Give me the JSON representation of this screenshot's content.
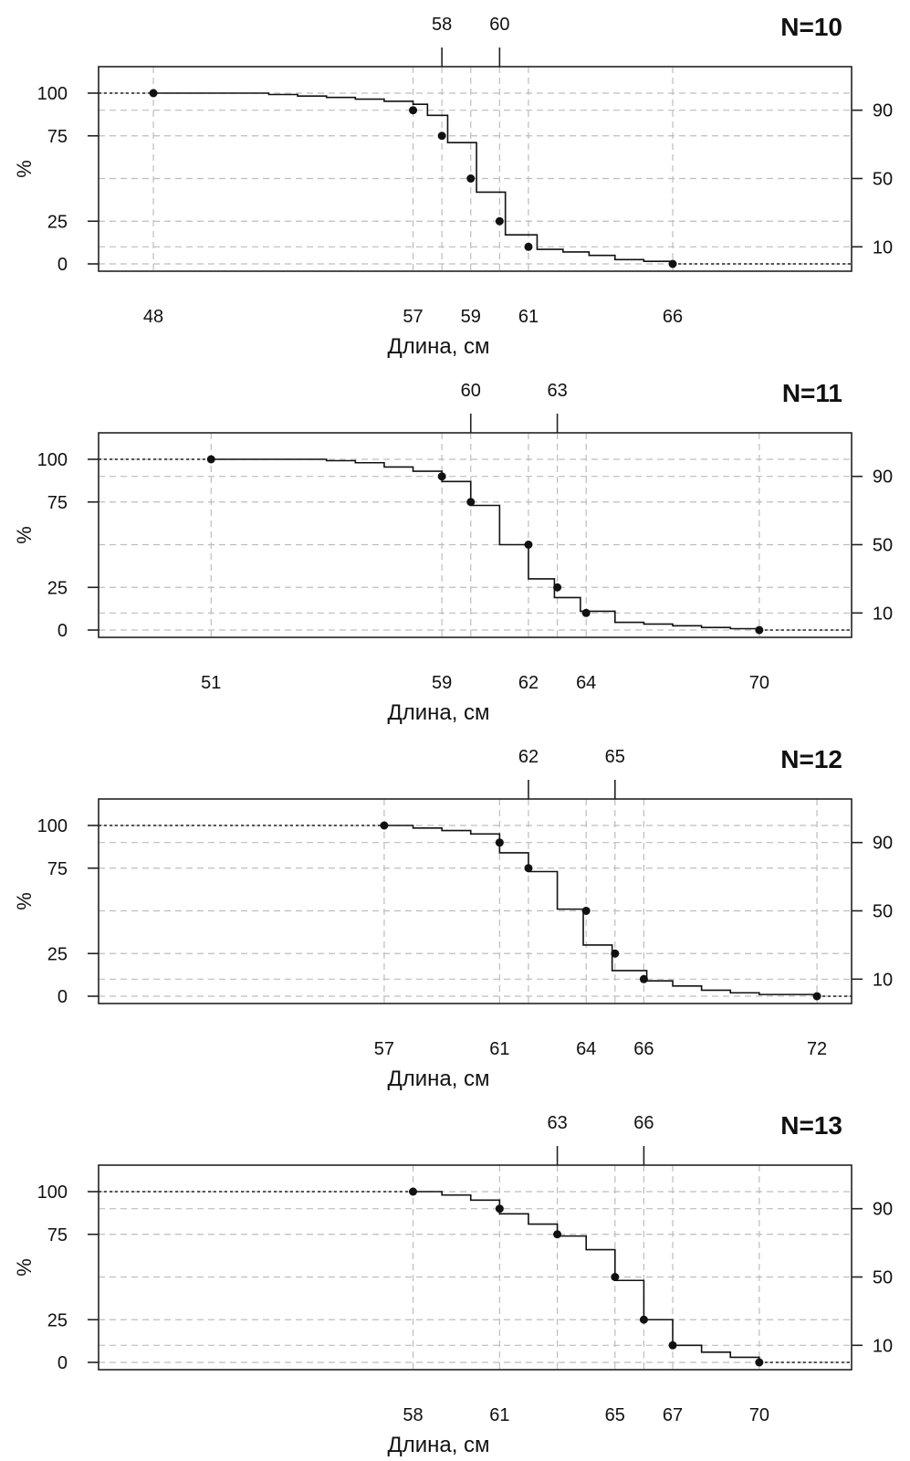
{
  "chart_data": [
    {
      "type": "line",
      "step": "survival",
      "title": "N=10",
      "xlabel": "Длина, см",
      "ylabel": "%",
      "xlim": [
        46.1,
        72.2
      ],
      "ylim": [
        0,
        100
      ],
      "yticks_left": [
        0,
        25,
        75,
        100
      ],
      "yticks_right": [
        10,
        50,
        90
      ],
      "xticks_bottom": [
        48,
        57,
        59,
        61,
        66
      ],
      "xticks_top": [
        58,
        60
      ],
      "xgrid": [
        48,
        57,
        58,
        59,
        60,
        61,
        66
      ],
      "grid": true,
      "points": [
        [
          48,
          100
        ],
        [
          57,
          90
        ],
        [
          58,
          75
        ],
        [
          59,
          50
        ],
        [
          60,
          25
        ],
        [
          61,
          10
        ],
        [
          66,
          0
        ]
      ],
      "steps": [
        [
          52,
          99.2
        ],
        [
          53,
          98.3
        ],
        [
          54,
          97.5
        ],
        [
          55,
          96.5
        ],
        [
          56,
          95.2
        ],
        [
          57,
          93.5
        ],
        [
          57.5,
          87
        ],
        [
          58.2,
          71
        ],
        [
          59.2,
          42
        ],
        [
          60.2,
          17
        ],
        [
          61.3,
          8.5
        ],
        [
          62.2,
          7
        ],
        [
          63.1,
          5
        ],
        [
          64,
          2.5
        ],
        [
          65,
          1.5
        ]
      ],
      "tail_end": 72.2
    },
    {
      "type": "line",
      "step": "survival",
      "title": "N=11",
      "xlabel": "Длина, см",
      "ylabel": "%",
      "xlim": [
        47.1,
        73.2
      ],
      "ylim": [
        0,
        100
      ],
      "yticks_left": [
        0,
        25,
        75,
        100
      ],
      "yticks_right": [
        10,
        50,
        90
      ],
      "xticks_bottom": [
        51,
        59,
        62,
        64,
        70
      ],
      "xticks_top": [
        60,
        63
      ],
      "xgrid": [
        51,
        59,
        60,
        62,
        63,
        64,
        70
      ],
      "grid": true,
      "points": [
        [
          51,
          100
        ],
        [
          59,
          90
        ],
        [
          60,
          75
        ],
        [
          62,
          50
        ],
        [
          63,
          25
        ],
        [
          64,
          10
        ],
        [
          70,
          0
        ]
      ],
      "steps": [
        [
          55,
          99.2
        ],
        [
          56,
          98
        ],
        [
          57,
          95.5
        ],
        [
          58,
          93
        ],
        [
          59,
          87
        ],
        [
          60,
          73
        ],
        [
          61,
          50
        ],
        [
          62,
          30
        ],
        [
          62.9,
          19
        ],
        [
          63.8,
          11
        ],
        [
          65,
          4.5
        ],
        [
          66,
          3.5
        ],
        [
          67,
          2.5
        ],
        [
          68,
          1.5
        ],
        [
          69,
          0.8
        ]
      ],
      "tail_end": 73.2
    },
    {
      "type": "line",
      "step": "survival",
      "title": "N=12",
      "xlabel": "Длина, см",
      "ylabel": "%",
      "xlim": [
        47.1,
        73.2
      ],
      "ylim": [
        0,
        100
      ],
      "yticks_left": [
        0,
        25,
        75,
        100
      ],
      "yticks_right": [
        10,
        50,
        90
      ],
      "xticks_bottom": [
        57,
        61,
        64,
        66,
        72
      ],
      "xticks_top": [
        62,
        65
      ],
      "xgrid": [
        57,
        61,
        62,
        64,
        65,
        66,
        72
      ],
      "grid": true,
      "points": [
        [
          57,
          100
        ],
        [
          61,
          90
        ],
        [
          62,
          75
        ],
        [
          64,
          50
        ],
        [
          65,
          25
        ],
        [
          66,
          10
        ],
        [
          72,
          0
        ]
      ],
      "steps": [
        [
          57,
          100
        ],
        [
          58,
          98.5
        ],
        [
          59,
          97
        ],
        [
          60,
          95
        ],
        [
          61,
          84
        ],
        [
          62,
          73
        ],
        [
          63,
          51
        ],
        [
          63.9,
          30
        ],
        [
          64.9,
          15
        ],
        [
          66.1,
          9
        ],
        [
          67,
          6
        ],
        [
          68,
          3.5
        ],
        [
          69,
          2
        ],
        [
          70,
          1
        ]
      ],
      "tail_end": 73.2
    },
    {
      "type": "line",
      "step": "survival",
      "title": "N=13",
      "xlabel": "Длина, см",
      "ylabel": "%",
      "xlim": [
        47.1,
        73.2
      ],
      "ylim": [
        0,
        100
      ],
      "yticks_left": [
        0,
        25,
        75,
        100
      ],
      "yticks_right": [
        10,
        50,
        90
      ],
      "xticks_bottom": [
        58,
        61,
        65,
        67,
        70
      ],
      "xticks_top": [
        63,
        66
      ],
      "xgrid": [
        58,
        61,
        63,
        65,
        66,
        67,
        70
      ],
      "grid": true,
      "points": [
        [
          58,
          100
        ],
        [
          61,
          90
        ],
        [
          63,
          75
        ],
        [
          65,
          50
        ],
        [
          66,
          25
        ],
        [
          67,
          10
        ],
        [
          70,
          0
        ]
      ],
      "steps": [
        [
          58,
          100
        ],
        [
          59,
          98
        ],
        [
          60,
          95
        ],
        [
          61,
          87
        ],
        [
          62,
          81
        ],
        [
          63,
          74
        ],
        [
          64,
          66
        ],
        [
          65,
          48
        ],
        [
          66,
          25
        ],
        [
          67,
          10
        ],
        [
          68,
          6
        ],
        [
          69,
          3
        ],
        [
          70,
          1
        ]
      ],
      "tail_end": 73.2
    }
  ]
}
